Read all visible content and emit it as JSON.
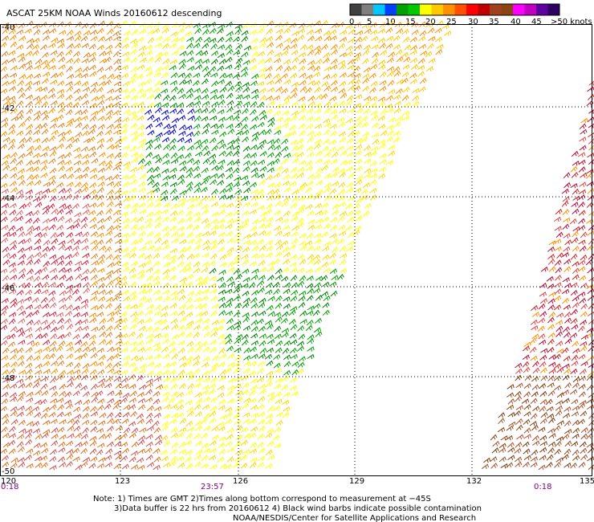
{
  "title": "ASCAT 25KM NOAA Winds 20160612 descending",
  "legend": {
    "labels": [
      "0",
      "5",
      "10",
      "15",
      "20",
      "25",
      "30",
      "35",
      "40",
      "45",
      ">50 knots"
    ],
    "colors": [
      "#404040",
      "#7f7f7f",
      "#00c8ff",
      "#0040ff",
      "#00a000",
      "#00c800",
      "#ffff00",
      "#ffc800",
      "#ff9000",
      "#ff5000",
      "#ff0000",
      "#c00000",
      "#a04020",
      "#8b4513",
      "#ff00ff",
      "#c000c0",
      "#6000a0",
      "#300060"
    ]
  },
  "axes": {
    "lon_labels": [
      "120",
      "123",
      "126",
      "129",
      "132",
      "135"
    ],
    "lat_labels": [
      "-40",
      "-42",
      "-44",
      "-46",
      "-48",
      "-50"
    ]
  },
  "times": [
    "0:18",
    "23:57",
    "0:18"
  ],
  "notes": [
    "Note: 1) Times are GMT 2)Times along bottom correspond to measurement at −45S",
    "3)Data buffer is 22 hrs from 20160612 4) Black wind barbs indicate possible contamination",
    "NOAA/NESDIS/Center for Satellite Applications and Research"
  ]
}
